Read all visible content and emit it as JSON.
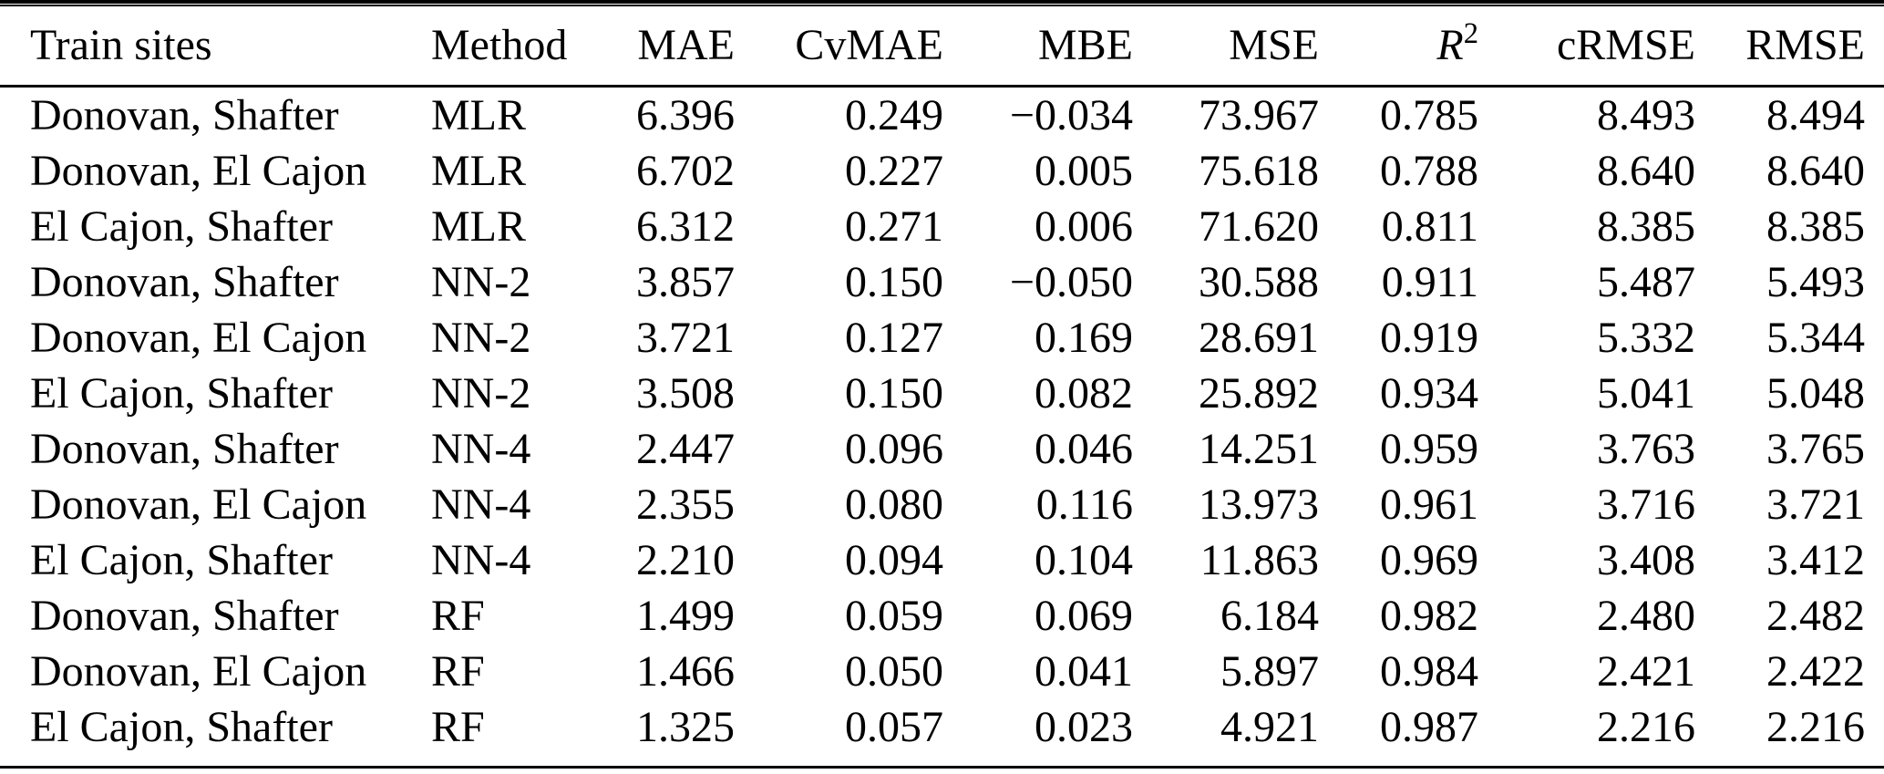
{
  "colors": {
    "background": "#ffffff",
    "text": "#000000",
    "rule": "#000000"
  },
  "table": {
    "columns": [
      {
        "key": "train_sites",
        "label": "Train sites",
        "align": "left"
      },
      {
        "key": "method",
        "label": "Method",
        "align": "left"
      },
      {
        "key": "mae",
        "label": "MAE",
        "align": "right"
      },
      {
        "key": "cvmae",
        "label": "CvMAE",
        "align": "right"
      },
      {
        "key": "mbe",
        "label": "MBE",
        "align": "right"
      },
      {
        "key": "mse",
        "label": "MSE",
        "align": "right"
      },
      {
        "key": "r2",
        "label": "R",
        "label_sup": "2",
        "italic": true,
        "align": "right"
      },
      {
        "key": "crmse",
        "label": "cRMSE",
        "align": "right"
      },
      {
        "key": "rmse",
        "label": "RMSE",
        "align": "right"
      }
    ],
    "rows": [
      [
        "Donovan, Shafter",
        "MLR",
        "6.396",
        "0.249",
        "−0.034",
        "73.967",
        "0.785",
        "8.493",
        "8.494"
      ],
      [
        "Donovan, El Cajon",
        "MLR",
        "6.702",
        "0.227",
        "0.005",
        "75.618",
        "0.788",
        "8.640",
        "8.640"
      ],
      [
        "El Cajon, Shafter",
        "MLR",
        "6.312",
        "0.271",
        "0.006",
        "71.620",
        "0.811",
        "8.385",
        "8.385"
      ],
      [
        "Donovan, Shafter",
        "NN-2",
        "3.857",
        "0.150",
        "−0.050",
        "30.588",
        "0.911",
        "5.487",
        "5.493"
      ],
      [
        "Donovan, El Cajon",
        "NN-2",
        "3.721",
        "0.127",
        "0.169",
        "28.691",
        "0.919",
        "5.332",
        "5.344"
      ],
      [
        "El Cajon, Shafter",
        "NN-2",
        "3.508",
        "0.150",
        "0.082",
        "25.892",
        "0.934",
        "5.041",
        "5.048"
      ],
      [
        "Donovan, Shafter",
        "NN-4",
        "2.447",
        "0.096",
        "0.046",
        "14.251",
        "0.959",
        "3.763",
        "3.765"
      ],
      [
        "Donovan, El Cajon",
        "NN-4",
        "2.355",
        "0.080",
        "0.116",
        "13.973",
        "0.961",
        "3.716",
        "3.721"
      ],
      [
        "El Cajon, Shafter",
        "NN-4",
        "2.210",
        "0.094",
        "0.104",
        "11.863",
        "0.969",
        "3.408",
        "3.412"
      ],
      [
        "Donovan, Shafter",
        "RF",
        "1.499",
        "0.059",
        "0.069",
        "6.184",
        "0.982",
        "2.480",
        "2.482"
      ],
      [
        "Donovan, El Cajon",
        "RF",
        "1.466",
        "0.050",
        "0.041",
        "5.897",
        "0.984",
        "2.421",
        "2.422"
      ],
      [
        "El Cajon, Shafter",
        "RF",
        "1.325",
        "0.057",
        "0.023",
        "4.921",
        "0.987",
        "2.216",
        "2.216"
      ]
    ]
  },
  "chart_data": {
    "type": "table",
    "columns": [
      "Train sites",
      "Method",
      "MAE",
      "CvMAE",
      "MBE",
      "MSE",
      "R2",
      "cRMSE",
      "RMSE"
    ],
    "rows": [
      [
        "Donovan, Shafter",
        "MLR",
        6.396,
        0.249,
        -0.034,
        73.967,
        0.785,
        8.493,
        8.494
      ],
      [
        "Donovan, El Cajon",
        "MLR",
        6.702,
        0.227,
        0.005,
        75.618,
        0.788,
        8.64,
        8.64
      ],
      [
        "El Cajon, Shafter",
        "MLR",
        6.312,
        0.271,
        0.006,
        71.62,
        0.811,
        8.385,
        8.385
      ],
      [
        "Donovan, Shafter",
        "NN-2",
        3.857,
        0.15,
        -0.05,
        30.588,
        0.911,
        5.487,
        5.493
      ],
      [
        "Donovan, El Cajon",
        "NN-2",
        3.721,
        0.127,
        0.169,
        28.691,
        0.919,
        5.332,
        5.344
      ],
      [
        "El Cajon, Shafter",
        "NN-2",
        3.508,
        0.15,
        0.082,
        25.892,
        0.934,
        5.041,
        5.048
      ],
      [
        "Donovan, Shafter",
        "NN-4",
        2.447,
        0.096,
        0.046,
        14.251,
        0.959,
        3.763,
        3.765
      ],
      [
        "Donovan, El Cajon",
        "NN-4",
        2.355,
        0.08,
        0.116,
        13.973,
        0.961,
        3.716,
        3.721
      ],
      [
        "El Cajon, Shafter",
        "NN-4",
        2.21,
        0.094,
        0.104,
        11.863,
        0.969,
        3.408,
        3.412
      ],
      [
        "Donovan, Shafter",
        "RF",
        1.499,
        0.059,
        0.069,
        6.184,
        0.982,
        2.48,
        2.482
      ],
      [
        "Donovan, El Cajon",
        "RF",
        1.466,
        0.05,
        0.041,
        5.897,
        0.984,
        2.421,
        2.422
      ],
      [
        "El Cajon, Shafter",
        "RF",
        1.325,
        0.057,
        0.023,
        4.921,
        0.987,
        2.216,
        2.216
      ]
    ]
  }
}
